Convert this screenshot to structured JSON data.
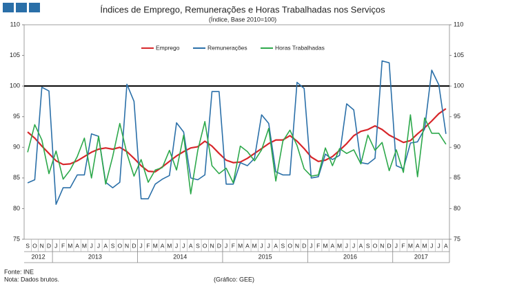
{
  "chart_data": {
    "type": "line",
    "title": "Índices de Emprego,  Remunerações e Horas Trabalhadas nos Serviços",
    "subtitle": "(Índice, Base 2010=100)",
    "categories": [
      "S",
      "O",
      "N",
      "D",
      "J",
      "F",
      "M",
      "A",
      "M",
      "J",
      "J",
      "A",
      "S",
      "O",
      "N",
      "D",
      "J",
      "F",
      "M",
      "A",
      "M",
      "J",
      "J",
      "A",
      "S",
      "O",
      "N",
      "D",
      "J",
      "F",
      "M",
      "A",
      "M",
      "J",
      "J",
      "A",
      "S",
      "O",
      "N",
      "D",
      "J",
      "F",
      "M",
      "A",
      "M",
      "J",
      "J",
      "A",
      "S",
      "O",
      "N",
      "D",
      "J",
      "F",
      "M",
      "A",
      "M",
      "J",
      "J",
      "A"
    ],
    "years": [
      "2012",
      "2013",
      "2014",
      "2015",
      "2016",
      "2017"
    ],
    "series": [
      {
        "name": "Emprego",
        "color": "#d7262a",
        "values": [
          92.5,
          91.5,
          90.2,
          89,
          87.8,
          87.2,
          87.3,
          87.8,
          88.5,
          89.2,
          89.7,
          89.9,
          89.7,
          90.0,
          89.3,
          88.2,
          87.0,
          86.1,
          86.0,
          86.8,
          87.7,
          88.6,
          89.3,
          89.9,
          90.1,
          91.0,
          90.2,
          89.0,
          87.9,
          87.5,
          87.6,
          88.2,
          89.0,
          89.8,
          90.6,
          91.2,
          91.2,
          91.9,
          91.0,
          89.8,
          88.4,
          87.7,
          87.9,
          88.5,
          89.5,
          90.6,
          91.9,
          92.6,
          92.9,
          93.5,
          92.9,
          92.0,
          91.4,
          90.8,
          91.1,
          92.2,
          93.2,
          94.3,
          95.5,
          96.3
        ]
      },
      {
        "name": "Remunerações",
        "color": "#2a6fa8",
        "values": [
          84.2,
          84.7,
          99.8,
          99.2,
          80.7,
          83.4,
          83.4,
          85.5,
          85.5,
          92.2,
          91.8,
          84.3,
          83.4,
          84.3,
          100.3,
          97.5,
          81.6,
          81.6,
          84.0,
          84.8,
          85.4,
          94.0,
          92.5,
          85.0,
          84.7,
          85.5,
          99.1,
          99.1,
          84.0,
          84.0,
          87.5,
          87.0,
          88.2,
          95.3,
          93.9,
          86.0,
          85.5,
          85.5,
          100.6,
          99.6,
          85.0,
          85.2,
          88.9,
          88.0,
          88.7,
          97.1,
          96.1,
          87.5,
          87.3,
          88.2,
          104.1,
          103.8,
          87.0,
          86.5,
          90.7,
          90.9,
          93.0,
          102.6,
          100.2,
          92.2
        ]
      },
      {
        "name": "Horas Trabalhadas",
        "color": "#2ca84a",
        "values": [
          89.2,
          93.7,
          91.2,
          85.7,
          89.4,
          84.8,
          86.3,
          88.5,
          91.5,
          85.0,
          91.8,
          84.0,
          88.5,
          93.9,
          89.0,
          85.3,
          88.0,
          84.3,
          86.3,
          86.7,
          89.5,
          86.3,
          92.0,
          82.4,
          89.5,
          94.2,
          87.0,
          85.7,
          86.6,
          84.2,
          90.2,
          89.3,
          87.8,
          89.6,
          93.1,
          84.5,
          91.0,
          92.8,
          90.3,
          86.5,
          85.3,
          85.5,
          89.9,
          87.0,
          89.8,
          89.0,
          89.6,
          87.3,
          92.0,
          89.5,
          90.8,
          86.2,
          89.6,
          85.9,
          95.3,
          85.2,
          94.8,
          92.3,
          92.3,
          90.5
        ]
      }
    ],
    "ylim": [
      75,
      110
    ],
    "yticks": [
      75,
      80,
      85,
      90,
      95,
      100,
      105,
      110
    ],
    "y2lim": [
      75,
      110
    ],
    "y2ticks": [
      75,
      80,
      85,
      90,
      95,
      100,
      105,
      110
    ],
    "reference_line": 100,
    "legend": "top",
    "notes": [
      "Fonte: INE",
      "Nota: Dados brutos."
    ],
    "credit": "(Gráfico: GEE)"
  }
}
